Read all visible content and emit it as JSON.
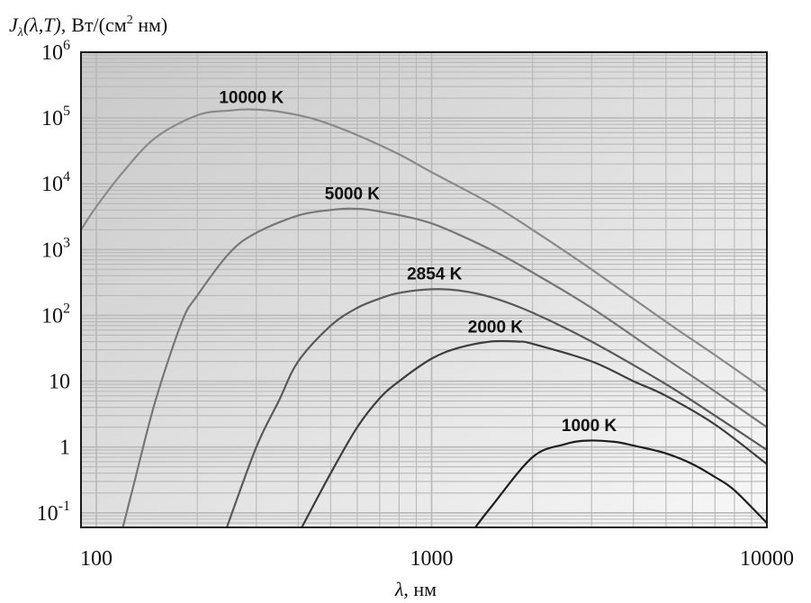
{
  "chart_data": {
    "type": "line",
    "title": "",
    "ylabel": {
      "main": "J",
      "sub": "λ",
      "args": "(λ,T),",
      "units_prefix": "Вт/(см",
      "units_sup": "2",
      "units_suffix": " нм)"
    },
    "xlabel": {
      "symbol": "λ",
      "units": ", нм"
    },
    "x_scale": "log",
    "y_scale": "log",
    "xlim": [
      90,
      10000
    ],
    "ylim": [
      0.06,
      1000000
    ],
    "x_ticks": [
      {
        "value": 100,
        "label": "100"
      },
      {
        "value": 1000,
        "label": "1000"
      },
      {
        "value": 10000,
        "label": "10000"
      }
    ],
    "y_ticks": [
      {
        "value": 1000000,
        "base": "10",
        "sup": "6"
      },
      {
        "value": 100000,
        "base": "10",
        "sup": "5"
      },
      {
        "value": 10000,
        "base": "10",
        "sup": "4"
      },
      {
        "value": 1000,
        "base": "10",
        "sup": "3"
      },
      {
        "value": 100,
        "base": "10",
        "sup": "2"
      },
      {
        "value": 10,
        "base": "10",
        "sup": ""
      },
      {
        "value": 1,
        "base": "1",
        "sup": ""
      },
      {
        "value": 0.1,
        "base": "10",
        "sup": "-1"
      }
    ],
    "grid": true,
    "legend": "none",
    "series": [
      {
        "name": "10000 K",
        "color": "#8a8a8a",
        "label_at": [
          290,
          170000
        ],
        "points": [
          [
            90,
            2000
          ],
          [
            100,
            4500
          ],
          [
            120,
            15000
          ],
          [
            150,
            50000
          ],
          [
            200,
            110000
          ],
          [
            250,
            130000
          ],
          [
            290,
            135000
          ],
          [
            350,
            125000
          ],
          [
            450,
            95000
          ],
          [
            600,
            55000
          ],
          [
            800,
            28000
          ],
          [
            1000,
            15000
          ],
          [
            1500,
            5000
          ],
          [
            2000,
            2000
          ],
          [
            3000,
            500
          ],
          [
            5000,
            80
          ],
          [
            7000,
            25
          ],
          [
            10000,
            7
          ]
        ]
      },
      {
        "name": "5000 K",
        "color": "#777777",
        "label_at": [
          580,
          5800
        ],
        "points": [
          [
            120,
            0.06
          ],
          [
            130,
            0.3
          ],
          [
            150,
            5
          ],
          [
            180,
            80
          ],
          [
            200,
            200
          ],
          [
            250,
            900
          ],
          [
            300,
            1800
          ],
          [
            400,
            3300
          ],
          [
            500,
            4000
          ],
          [
            580,
            4200
          ],
          [
            700,
            3800
          ],
          [
            1000,
            2500
          ],
          [
            1500,
            1000
          ],
          [
            2000,
            450
          ],
          [
            3000,
            130
          ],
          [
            5000,
            22
          ],
          [
            7000,
            7
          ],
          [
            10000,
            2
          ]
        ]
      },
      {
        "name": "2854 K",
        "color": "#5a5a5a",
        "label_at": [
          1020,
          350
        ],
        "points": [
          [
            245,
            0.06
          ],
          [
            300,
            1
          ],
          [
            350,
            5
          ],
          [
            400,
            20
          ],
          [
            500,
            70
          ],
          [
            600,
            130
          ],
          [
            700,
            180
          ],
          [
            800,
            220
          ],
          [
            1000,
            250
          ],
          [
            1200,
            240
          ],
          [
            1500,
            190
          ],
          [
            2000,
            110
          ],
          [
            3000,
            40
          ],
          [
            5000,
            9
          ],
          [
            7000,
            3
          ],
          [
            10000,
            0.9
          ]
        ]
      },
      {
        "name": "2000 K",
        "color": "#3e3e3e",
        "label_at": [
          1550,
          55
        ],
        "points": [
          [
            410,
            0.06
          ],
          [
            500,
            0.4
          ],
          [
            600,
            2
          ],
          [
            700,
            5.5
          ],
          [
            800,
            10
          ],
          [
            1000,
            22
          ],
          [
            1200,
            32
          ],
          [
            1500,
            40
          ],
          [
            1800,
            40
          ],
          [
            2000,
            37
          ],
          [
            3000,
            20
          ],
          [
            4000,
            10
          ],
          [
            5000,
            6
          ],
          [
            7000,
            2.2
          ],
          [
            10000,
            0.55
          ]
        ]
      },
      {
        "name": "1000 K",
        "color": "#1e1e1e",
        "label_at": [
          2950,
          1.75
        ],
        "points": [
          [
            1350,
            0.06
          ],
          [
            1500,
            0.12
          ],
          [
            2000,
            0.7
          ],
          [
            2500,
            1.1
          ],
          [
            2900,
            1.25
          ],
          [
            3500,
            1.2
          ],
          [
            4000,
            1.05
          ],
          [
            5000,
            0.8
          ],
          [
            6000,
            0.55
          ],
          [
            7000,
            0.35
          ],
          [
            8000,
            0.22
          ],
          [
            10000,
            0.07
          ]
        ]
      }
    ]
  }
}
